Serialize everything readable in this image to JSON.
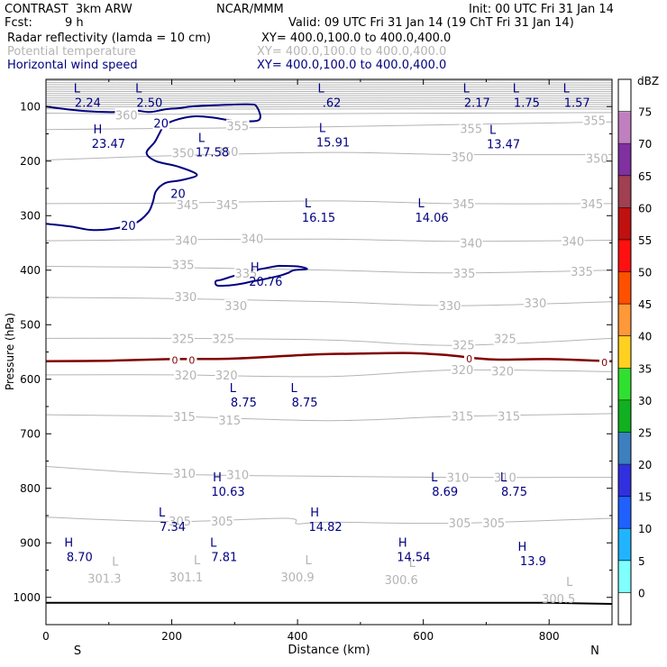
{
  "header": {
    "model": "CONTRAST  3km ARW",
    "org": "NCAR/MMM",
    "init": "Init: 00 UTC Fri 31 Jan 14",
    "fcst_label": "Fcst:",
    "fcst_value": "9 h",
    "valid": "Valid: 09 UTC Fri 31 Jan 14 (19 ChT Fri 31 Jan 14)",
    "fields": [
      {
        "name": "Radar reflectivity (lamda = 10 cm)",
        "xy": "XY= 400.0,100.0 to 400.0,400.0",
        "color": "#000000"
      },
      {
        "name": "Potential temperature",
        "xy": "XY= 400.0,100.0 to 400.0,400.0",
        "color": "#b4b4b4"
      },
      {
        "name": "Horizontal wind speed",
        "xy": "XY= 400.0,100.0 to 400.0,400.0",
        "color": "#000080"
      }
    ]
  },
  "colorbar": {
    "unit": "dBZ",
    "levels": [
      "0",
      "5",
      "10",
      "15",
      "20",
      "25",
      "30",
      "35",
      "40",
      "45",
      "50",
      "55",
      "60",
      "65",
      "70",
      "75"
    ],
    "colors": [
      "#ffffff",
      "#80ffff",
      "#20b4ff",
      "#2060ff",
      "#3030e0",
      "#3c80c0",
      "#10b020",
      "#30e030",
      "#ffd020",
      "#ff9838",
      "#ff5000",
      "#ff1010",
      "#c01010",
      "#a04050",
      "#8030a0",
      "#c080c0",
      "#ffffff"
    ]
  },
  "chart_data": {
    "type": "contour",
    "xlabel": "Distance (km)",
    "ylabel": "Pressure (hPa)",
    "xlim": [
      0,
      900
    ],
    "ylim": [
      1050,
      50
    ],
    "x_ticks": [
      "0",
      "200",
      "400",
      "600",
      "800"
    ],
    "y_ticks": [
      "100",
      "200",
      "300",
      "400",
      "500",
      "600",
      "700",
      "800",
      "900",
      "1000"
    ],
    "x_end_labels": {
      "left": "S",
      "right": "N"
    },
    "theta_labels": [
      {
        "x": 128,
        "p": 115,
        "text": "360"
      },
      {
        "x": 305,
        "p": 135,
        "text": "355"
      },
      {
        "x": 872,
        "p": 125,
        "text": "355"
      },
      {
        "x": 676,
        "p": 140,
        "text": "355"
      },
      {
        "x": 218,
        "p": 185,
        "text": "350"
      },
      {
        "x": 288,
        "p": 182,
        "text": "350"
      },
      {
        "x": 662,
        "p": 192,
        "text": "350"
      },
      {
        "x": 876,
        "p": 195,
        "text": "350"
      },
      {
        "x": 225,
        "p": 280,
        "text": "345"
      },
      {
        "x": 288,
        "p": 280,
        "text": "345"
      },
      {
        "x": 664,
        "p": 278,
        "text": "345"
      },
      {
        "x": 868,
        "p": 278,
        "text": "345"
      },
      {
        "x": 223,
        "p": 345,
        "text": "340"
      },
      {
        "x": 328,
        "p": 342,
        "text": "340"
      },
      {
        "x": 676,
        "p": 350,
        "text": "340"
      },
      {
        "x": 838,
        "p": 347,
        "text": "340"
      },
      {
        "x": 218,
        "p": 390,
        "text": "335"
      },
      {
        "x": 318,
        "p": 405,
        "text": "335"
      },
      {
        "x": 665,
        "p": 405,
        "text": "335"
      },
      {
        "x": 852,
        "p": 402,
        "text": "335"
      },
      {
        "x": 222,
        "p": 448,
        "text": "330"
      },
      {
        "x": 302,
        "p": 465,
        "text": "330"
      },
      {
        "x": 642,
        "p": 465,
        "text": "330"
      },
      {
        "x": 778,
        "p": 460,
        "text": "330"
      },
      {
        "x": 218,
        "p": 525,
        "text": "325"
      },
      {
        "x": 282,
        "p": 525,
        "text": "325"
      },
      {
        "x": 664,
        "p": 537,
        "text": "325"
      },
      {
        "x": 730,
        "p": 525,
        "text": "325"
      },
      {
        "x": 222,
        "p": 592,
        "text": "320"
      },
      {
        "x": 287,
        "p": 592,
        "text": "320"
      },
      {
        "x": 662,
        "p": 582,
        "text": "320"
      },
      {
        "x": 726,
        "p": 585,
        "text": "320"
      },
      {
        "x": 220,
        "p": 668,
        "text": "315"
      },
      {
        "x": 292,
        "p": 675,
        "text": "315"
      },
      {
        "x": 662,
        "p": 667,
        "text": "315"
      },
      {
        "x": 736,
        "p": 667,
        "text": "315"
      },
      {
        "x": 220,
        "p": 772,
        "text": "310"
      },
      {
        "x": 305,
        "p": 775,
        "text": "310"
      },
      {
        "x": 655,
        "p": 780,
        "text": "310"
      },
      {
        "x": 730,
        "p": 780,
        "text": "310"
      },
      {
        "x": 213,
        "p": 860,
        "text": "305"
      },
      {
        "x": 280,
        "p": 860,
        "text": "305"
      },
      {
        "x": 658,
        "p": 863,
        "text": "305"
      },
      {
        "x": 712,
        "p": 863,
        "text": "305"
      }
    ],
    "theta_extrema": [
      {
        "x": 93,
        "p": 965,
        "text": "301.3"
      },
      {
        "x": 223,
        "p": 962,
        "text": "301.1"
      },
      {
        "x": 400,
        "p": 962,
        "text": "300.9"
      },
      {
        "x": 565,
        "p": 967,
        "text": "300.6"
      },
      {
        "x": 815,
        "p": 1002,
        "text": "300.5"
      }
    ],
    "reflectivity_zero": [
      {
        "x": 205,
        "p": 563,
        "text": "0"
      },
      {
        "x": 232,
        "p": 563,
        "text": "0"
      },
      {
        "x": 673,
        "p": 561,
        "text": "0"
      },
      {
        "x": 888,
        "p": 567,
        "text": "0"
      }
    ],
    "wind_contour_labels": [
      {
        "x": 183,
        "p": 130,
        "text": "20"
      },
      {
        "x": 210,
        "p": 259,
        "text": "20"
      },
      {
        "x": 131,
        "p": 318,
        "text": "20"
      }
    ],
    "wind_extrema": [
      {
        "kind": "L",
        "x": 55,
        "p": 87,
        "value": "2.24"
      },
      {
        "kind": "L",
        "x": 153,
        "p": 87,
        "value": "2.50"
      },
      {
        "kind": "L",
        "x": 443,
        "p": 87,
        "value": ".62"
      },
      {
        "kind": "L",
        "x": 674,
        "p": 87,
        "value": "2.17"
      },
      {
        "kind": "L",
        "x": 753,
        "p": 87,
        "value": "1.75"
      },
      {
        "kind": "L",
        "x": 833,
        "p": 87,
        "value": "1.57"
      },
      {
        "kind": "H",
        "x": 88,
        "p": 162,
        "value": "23.47"
      },
      {
        "kind": "L",
        "x": 253,
        "p": 178,
        "value": "17.58"
      },
      {
        "kind": "L",
        "x": 445,
        "p": 160,
        "value": "15.91"
      },
      {
        "kind": "L",
        "x": 716,
        "p": 163,
        "value": "13.47"
      },
      {
        "kind": "L",
        "x": 422,
        "p": 298,
        "value": "16.15"
      },
      {
        "kind": "L",
        "x": 602,
        "p": 298,
        "value": "14.06"
      },
      {
        "kind": "H",
        "x": 338,
        "p": 415,
        "value": "20.76"
      },
      {
        "kind": "L",
        "x": 303,
        "p": 637,
        "value": "8.75"
      },
      {
        "kind": "L",
        "x": 400,
        "p": 637,
        "value": "8.75"
      },
      {
        "kind": "H",
        "x": 278,
        "p": 800,
        "value": "10.63"
      },
      {
        "kind": "L",
        "x": 623,
        "p": 800,
        "value": "8.69"
      },
      {
        "kind": "L",
        "x": 733,
        "p": 800,
        "value": "8.75"
      },
      {
        "kind": "L",
        "x": 190,
        "p": 865,
        "value": "7.34"
      },
      {
        "kind": "H",
        "x": 433,
        "p": 865,
        "value": "14.82"
      },
      {
        "kind": "H",
        "x": 42,
        "p": 920,
        "value": "8.70"
      },
      {
        "kind": "L",
        "x": 272,
        "p": 920,
        "value": "7.81"
      },
      {
        "kind": "H",
        "x": 573,
        "p": 920,
        "value": "14.54"
      },
      {
        "kind": "H",
        "x": 763,
        "p": 928,
        "value": "13.9"
      }
    ],
    "reflectivity_zero_line": [
      [
        0,
        567
      ],
      [
        100,
        566
      ],
      [
        200,
        563
      ],
      [
        300,
        562
      ],
      [
        420,
        555
      ],
      [
        500,
        553
      ],
      [
        580,
        552
      ],
      [
        640,
        556
      ],
      [
        680,
        561
      ],
      [
        720,
        564
      ],
      [
        800,
        563
      ],
      [
        900,
        567
      ]
    ],
    "ground_line": [
      [
        0,
        1010
      ],
      [
        400,
        1010
      ],
      [
        800,
        1010
      ],
      [
        900,
        1012
      ]
    ],
    "wind_20_contours": [
      [
        [
          0,
          100
        ],
        [
          60,
          108
        ],
        [
          110,
          110
        ],
        [
          140,
          107
        ],
        [
          165,
          110
        ],
        [
          190,
          105
        ],
        [
          210,
          103
        ],
        [
          230,
          100
        ],
        [
          260,
          98
        ],
        [
          320,
          96
        ],
        [
          335,
          100
        ],
        [
          338,
          125
        ],
        [
          295,
          125
        ],
        [
          265,
          120
        ],
        [
          235,
          118
        ],
        [
          205,
          125
        ],
        [
          188,
          135
        ],
        [
          180,
          150
        ],
        [
          173,
          165
        ],
        [
          160,
          185
        ],
        [
          175,
          200
        ],
        [
          210,
          210
        ],
        [
          240,
          225
        ],
        [
          215,
          235
        ],
        [
          190,
          240
        ],
        [
          175,
          255
        ],
        [
          170,
          275
        ],
        [
          162,
          295
        ],
        [
          140,
          315
        ],
        [
          100,
          325
        ],
        [
          70,
          326
        ],
        [
          40,
          320
        ],
        [
          0,
          315
        ]
      ],
      [
        [
          370,
          392
        ],
        [
          400,
          393
        ],
        [
          415,
          398
        ],
        [
          394,
          400
        ],
        [
          385,
          405
        ],
        [
          372,
          410
        ],
        [
          345,
          417
        ],
        [
          330,
          420
        ],
        [
          310,
          425
        ],
        [
          290,
          428
        ],
        [
          272,
          428
        ],
        [
          270,
          420
        ],
        [
          278,
          418
        ],
        [
          300,
          410
        ],
        [
          325,
          402
        ],
        [
          355,
          395
        ],
        [
          370,
          392
        ]
      ]
    ],
    "theta_levels": [
      {
        "label": "360",
        "pts": [
          [
            0,
            112
          ],
          [
            200,
            114
          ],
          [
            450,
            113
          ],
          [
            650,
            112
          ],
          [
            900,
            111
          ]
        ]
      },
      {
        "label": "355",
        "pts": [
          [
            0,
            142
          ],
          [
            200,
            140
          ],
          [
            400,
            138
          ],
          [
            650,
            133
          ],
          [
            900,
            128
          ]
        ]
      },
      {
        "label": "350",
        "pts": [
          [
            0,
            198
          ],
          [
            200,
            190
          ],
          [
            450,
            184
          ],
          [
            650,
            188
          ],
          [
            900,
            188
          ]
        ]
      },
      {
        "label": "345",
        "pts": [
          [
            0,
            278
          ],
          [
            200,
            277
          ],
          [
            450,
            273
          ],
          [
            650,
            278
          ],
          [
            900,
            278
          ]
        ]
      },
      {
        "label": "340",
        "pts": [
          [
            0,
            346
          ],
          [
            200,
            344
          ],
          [
            450,
            343
          ],
          [
            650,
            347
          ],
          [
            900,
            345
          ]
        ]
      },
      {
        "label": "335",
        "pts": [
          [
            0,
            393
          ],
          [
            200,
            395
          ],
          [
            450,
            400
          ],
          [
            650,
            405
          ],
          [
            900,
            400
          ]
        ]
      },
      {
        "label": "330",
        "pts": [
          [
            0,
            450
          ],
          [
            200,
            452
          ],
          [
            450,
            458
          ],
          [
            650,
            465
          ],
          [
            900,
            458
          ]
        ]
      },
      {
        "label": "325",
        "pts": [
          [
            0,
            525
          ],
          [
            200,
            525
          ],
          [
            450,
            528
          ],
          [
            650,
            538
          ],
          [
            900,
            525
          ]
        ]
      },
      {
        "label": "320",
        "pts": [
          [
            0,
            592
          ],
          [
            200,
            592
          ],
          [
            450,
            595
          ],
          [
            650,
            583
          ],
          [
            900,
            586
          ]
        ]
      },
      {
        "label": "315",
        "pts": [
          [
            0,
            665
          ],
          [
            200,
            668
          ],
          [
            450,
            676
          ],
          [
            650,
            668
          ],
          [
            900,
            663
          ]
        ]
      },
      {
        "label": "310",
        "pts": [
          [
            0,
            760
          ],
          [
            200,
            774
          ],
          [
            450,
            778
          ],
          [
            650,
            780
          ],
          [
            900,
            780
          ]
        ]
      },
      {
        "label": "305",
        "pts": [
          [
            0,
            853
          ],
          [
            200,
            861
          ],
          [
            380,
            855
          ],
          [
            400,
            865
          ],
          [
            450,
            862
          ],
          [
            650,
            864
          ],
          [
            900,
            855
          ]
        ]
      }
    ]
  }
}
